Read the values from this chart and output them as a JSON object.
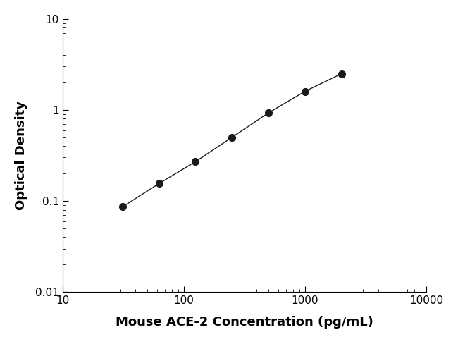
{
  "x": [
    31.25,
    62.5,
    125,
    250,
    500,
    1000,
    2000
  ],
  "y": [
    0.086,
    0.155,
    0.27,
    0.5,
    0.93,
    1.6,
    2.5
  ],
  "xlabel": "Mouse ACE-2 Concentration (pg/mL)",
  "ylabel": "Optical Density",
  "xlim": [
    10,
    10000
  ],
  "ylim": [
    0.01,
    10
  ],
  "line_color": "#1a1a1a",
  "marker_color": "#1a1a1a",
  "marker_size": 7,
  "line_width": 1.0,
  "background_color": "#ffffff",
  "xlabel_fontsize": 13,
  "ylabel_fontsize": 13,
  "tick_fontsize": 11,
  "xticks": [
    10,
    100,
    1000,
    10000
  ],
  "yticks": [
    0.01,
    0.1,
    1,
    10
  ],
  "xtick_labels": [
    "10",
    "100",
    "1000",
    "10000"
  ],
  "ytick_labels": [
    "0.01",
    "0.1",
    "1",
    "10"
  ]
}
